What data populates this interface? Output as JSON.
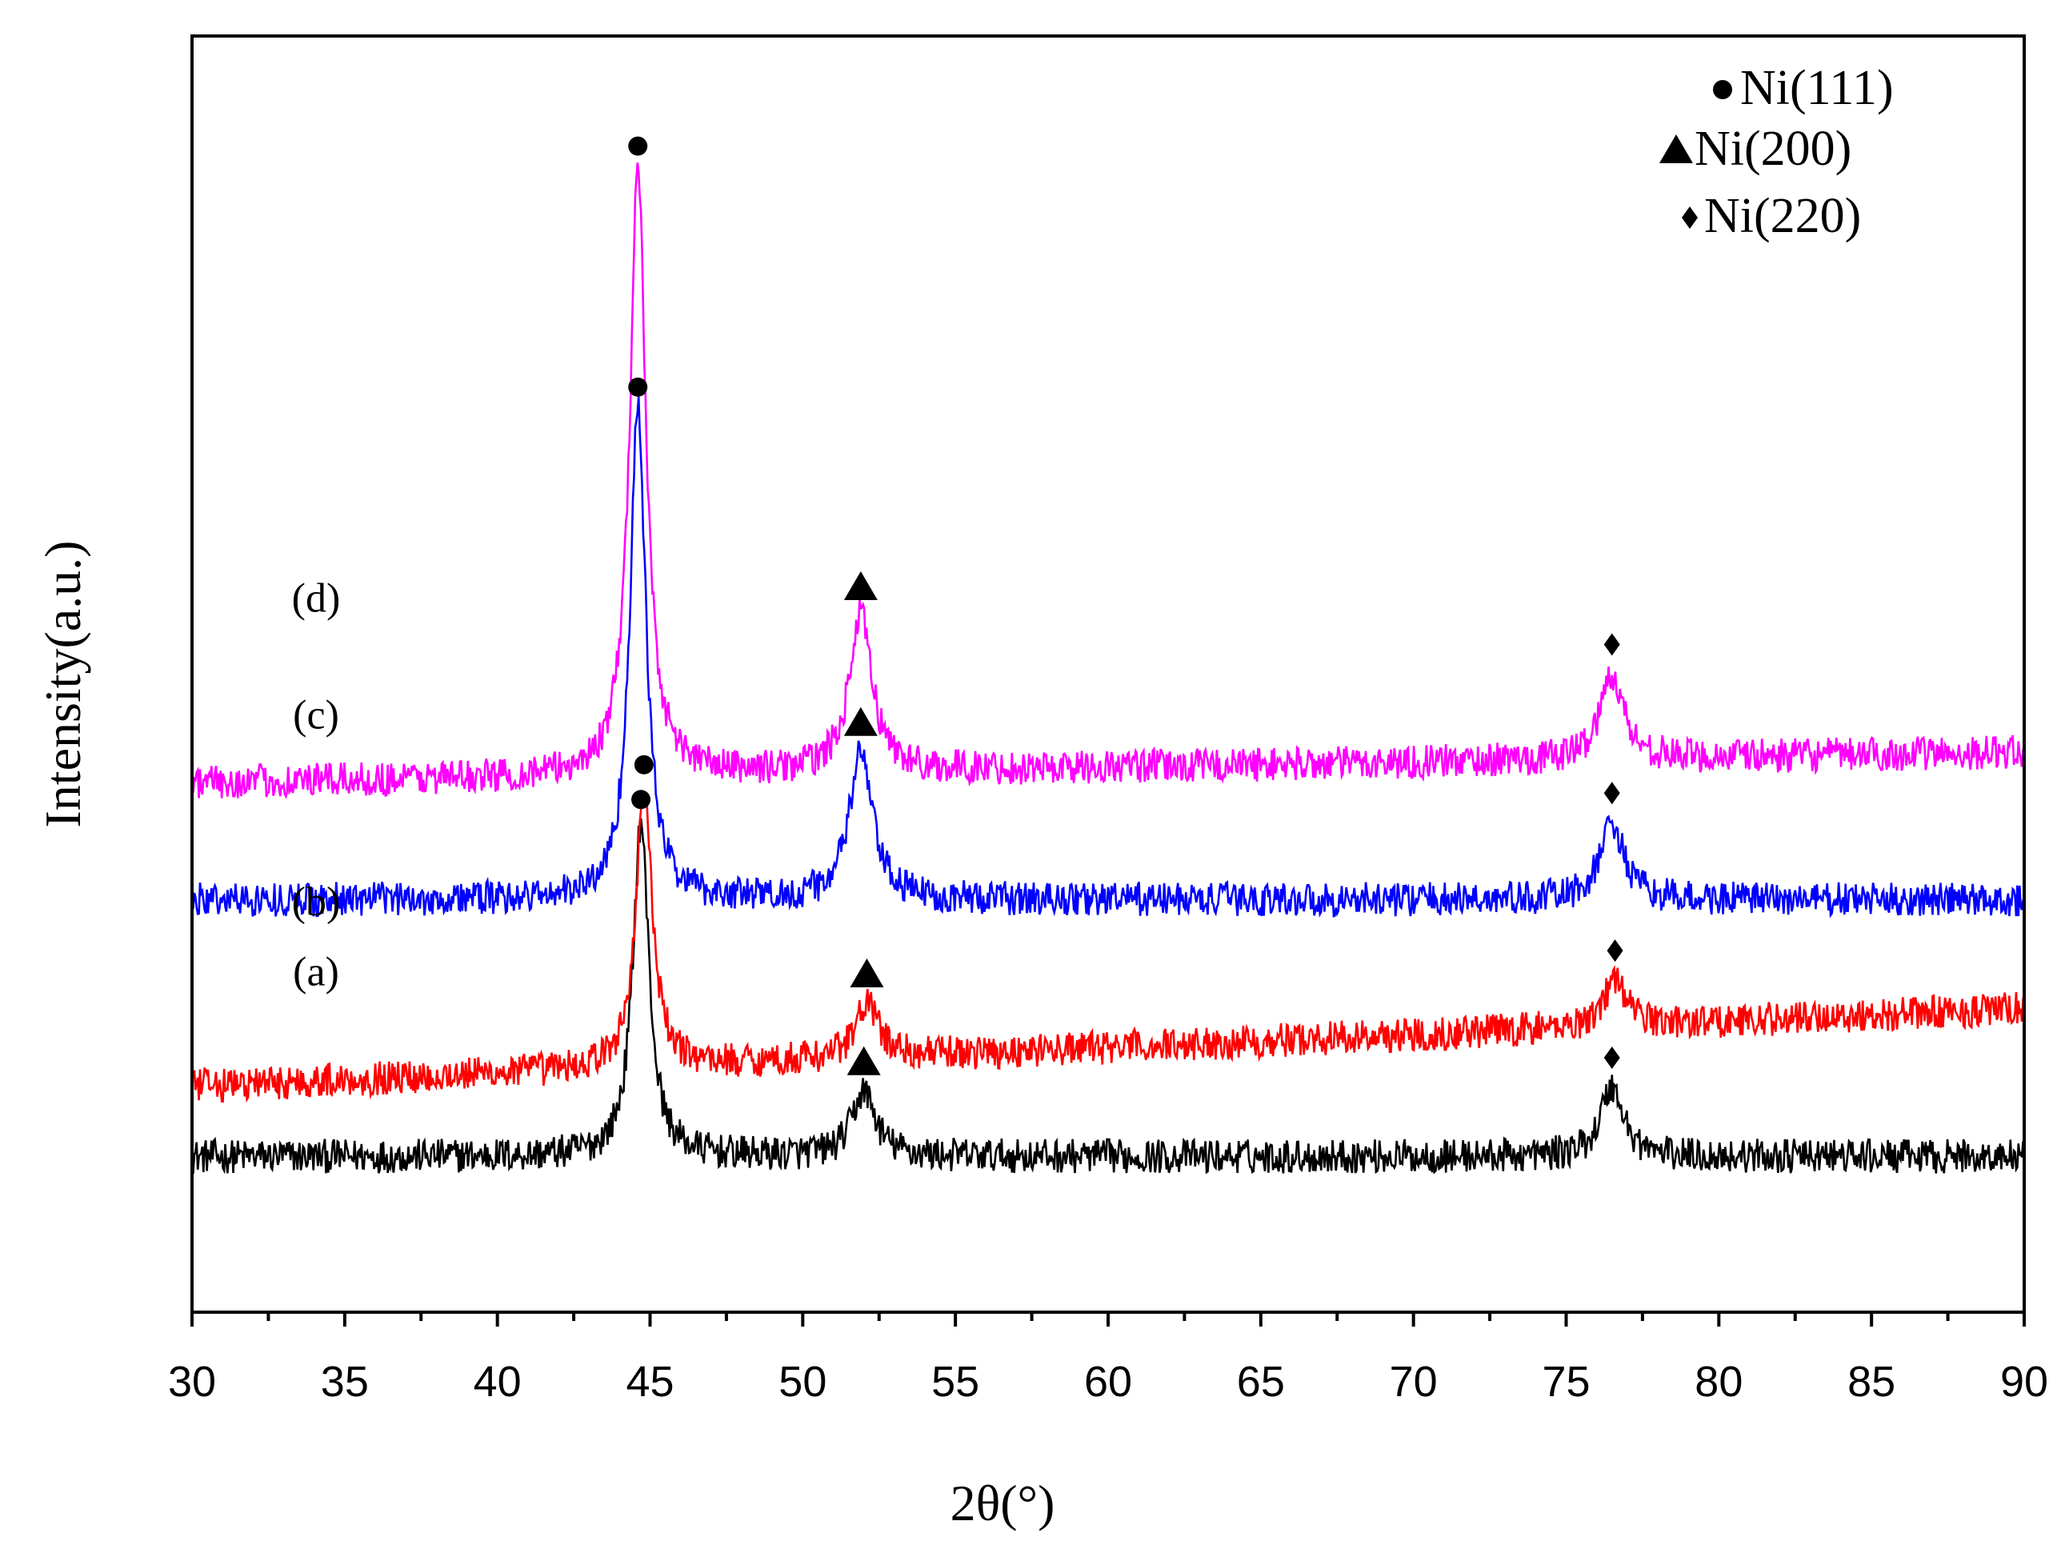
{
  "chart_data": {
    "type": "line",
    "title": "",
    "xlabel": "2θ(°)",
    "ylabel": "Intensity(a.u.)",
    "xlim": [
      30,
      90
    ],
    "xticks": [
      "30",
      "35",
      "40",
      "45",
      "50",
      "55",
      "60",
      "65",
      "70",
      "75",
      "80",
      "85",
      "90"
    ],
    "grid": false,
    "legend_position": "top-right",
    "legend": [
      {
        "marker": "circle",
        "label": "Ni(111)"
      },
      {
        "marker": "triangle",
        "label": "Ni(200)"
      },
      {
        "marker": "diamond",
        "label": "Ni(220)"
      }
    ],
    "series": [
      {
        "name": "(a)",
        "label": "(a)",
        "color": "#000000",
        "baseline": 1.0,
        "peaks": [
          {
            "x": 44.7,
            "height": 2.15,
            "marker": "circle"
          },
          {
            "x": 52.0,
            "height": 0.42,
            "marker": "triangle"
          },
          {
            "x": 76.5,
            "height": 0.45,
            "marker": "diamond"
          }
        ]
      },
      {
        "name": "(b)",
        "label": "(b)",
        "color": "#ff0000",
        "baseline": 1.45,
        "baseline_end": 1.95,
        "peaks": [
          {
            "x": 44.8,
            "height": 1.8,
            "marker": "circle"
          },
          {
            "x": 52.1,
            "height": 0.35,
            "marker": "triangle"
          },
          {
            "x": 76.6,
            "height": 0.3,
            "marker": "diamond"
          }
        ]
      },
      {
        "name": "(c)",
        "label": "(c)",
        "color": "#0000ff",
        "baseline": 2.65,
        "peaks": [
          {
            "x": 44.6,
            "height": 3.15,
            "marker": "circle"
          },
          {
            "x": 51.9,
            "height": 0.95,
            "marker": "triangle"
          },
          {
            "x": 76.5,
            "height": 0.5,
            "marker": "diamond"
          }
        ]
      },
      {
        "name": "(d)",
        "label": "(d)",
        "color": "#ff00ff",
        "baseline": 3.4,
        "baseline_end": 3.6,
        "peaks": [
          {
            "x": 44.6,
            "height": 3.9,
            "marker": "circle"
          },
          {
            "x": 51.9,
            "height": 1.0,
            "marker": "triangle"
          },
          {
            "x": 76.5,
            "height": 0.55,
            "marker": "diamond"
          }
        ]
      }
    ]
  }
}
